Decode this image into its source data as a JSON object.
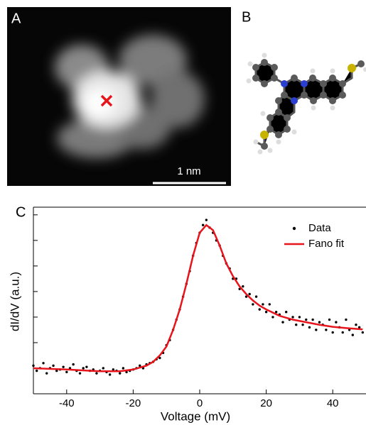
{
  "panels": {
    "a": {
      "label": "A",
      "scale_bar": "1 nm"
    },
    "b": {
      "label": "B"
    },
    "c": {
      "label": "C"
    }
  },
  "chart_data": {
    "type": "scatter_line",
    "xlabel": "Voltage (mV)",
    "ylabel": "dI/dV (a.u.)",
    "xlim": [
      -50,
      50
    ],
    "xticks": [
      -40,
      -20,
      0,
      20,
      40
    ],
    "ylim": [
      0,
      7.3
    ],
    "yticks": [
      1,
      2,
      3,
      4,
      5,
      6,
      7
    ],
    "ytick_labels": false,
    "legend": "top-right",
    "series": [
      {
        "name": "Data",
        "color": "#000000",
        "kind": "points",
        "x": [
          -50,
          -49,
          -48,
          -47,
          -46,
          -45,
          -44,
          -43,
          -42,
          -41,
          -40,
          -39,
          -38,
          -37,
          -36,
          -35,
          -34,
          -33,
          -32,
          -31,
          -30,
          -29,
          -28,
          -27,
          -26,
          -25,
          -24,
          -23,
          -22,
          -21,
          -20,
          -19,
          -18,
          -17,
          -16,
          -15,
          -14,
          -13,
          -12,
          -11,
          -10,
          -9,
          -8,
          -7,
          -6,
          -5,
          -4,
          -3,
          -2,
          -1,
          0,
          1,
          2,
          3,
          4,
          5,
          6,
          7,
          8,
          9,
          10,
          11,
          12,
          13,
          14,
          15,
          16,
          17,
          18,
          19,
          20,
          21,
          22,
          23,
          24,
          25,
          26,
          27,
          28,
          29,
          30,
          31,
          32,
          33,
          34,
          35,
          36,
          37,
          38,
          39,
          40,
          41,
          42,
          43,
          44,
          45,
          46,
          47,
          48,
          49
        ],
        "values": [
          1.1,
          0.9,
          1.0,
          1.2,
          0.8,
          1.0,
          1.1,
          0.9,
          0.95,
          1.05,
          0.85,
          1.0,
          1.15,
          0.9,
          0.8,
          1.0,
          1.05,
          0.9,
          0.95,
          0.8,
          0.9,
          1.0,
          0.85,
          0.75,
          0.95,
          0.9,
          0.8,
          1.0,
          0.85,
          0.9,
          0.95,
          1.0,
          1.1,
          1.0,
          1.15,
          1.2,
          1.25,
          1.35,
          1.4,
          1.6,
          1.9,
          2.1,
          2.5,
          2.9,
          3.3,
          3.8,
          4.3,
          4.8,
          5.4,
          5.9,
          6.3,
          6.6,
          6.8,
          6.5,
          6.3,
          6.0,
          5.8,
          5.4,
          5.1,
          4.9,
          4.5,
          4.5,
          4.1,
          4.2,
          3.8,
          3.9,
          3.5,
          3.8,
          3.3,
          3.5,
          3.2,
          3.5,
          3.0,
          3.2,
          3.1,
          2.8,
          3.2,
          2.9,
          3.0,
          2.7,
          3.0,
          2.7,
          2.9,
          2.6,
          2.9,
          2.5,
          2.8,
          2.7,
          2.5,
          2.9,
          2.4,
          2.8,
          2.6,
          2.4,
          2.9,
          2.5,
          2.3,
          2.7,
          2.6,
          2.4
        ]
      },
      {
        "name": "Fano fit",
        "color": "#e8141b",
        "kind": "line",
        "x": [
          -50,
          -40,
          -30,
          -24,
          -20,
          -16,
          -14,
          -12,
          -10,
          -8,
          -6,
          -4,
          -2,
          0,
          2,
          4,
          6,
          8,
          10,
          12,
          14,
          16,
          18,
          20,
          24,
          28,
          32,
          36,
          40,
          44,
          49
        ],
        "values": [
          1.0,
          0.95,
          0.88,
          0.88,
          0.95,
          1.1,
          1.25,
          1.5,
          1.85,
          2.5,
          3.3,
          4.3,
          5.4,
          6.3,
          6.6,
          6.4,
          5.8,
          5.1,
          4.6,
          4.2,
          3.9,
          3.65,
          3.45,
          3.3,
          3.05,
          2.9,
          2.8,
          2.7,
          2.62,
          2.57,
          2.52
        ]
      }
    ]
  }
}
